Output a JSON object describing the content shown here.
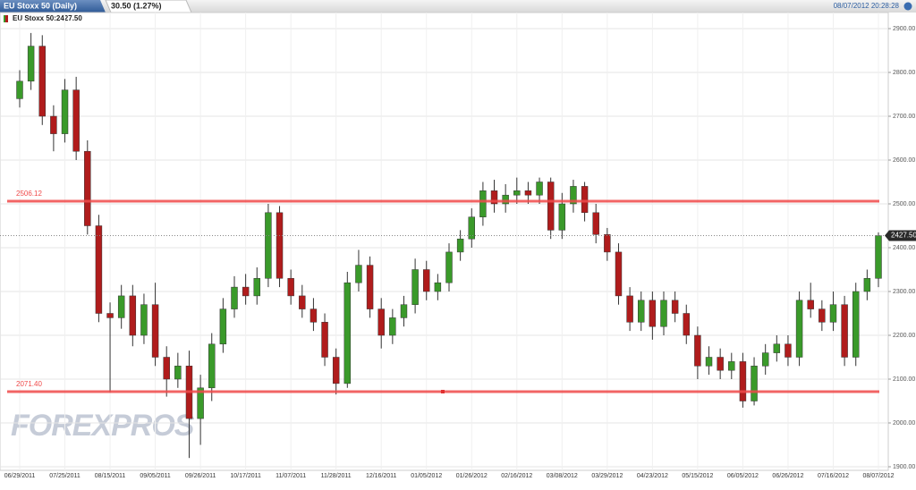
{
  "header": {
    "title": "EU Stoxx 50 (Daily)",
    "change": "30.50 (1.27%)",
    "timestamp": "08/07/2012 20:28:28"
  },
  "chart_data": {
    "type": "candlestick",
    "legend": "EU Stoxx 50:2427.50",
    "watermark": "FOREXPROS",
    "up_color": "#3a9a2a",
    "down_color": "#b01c1c",
    "grid": true,
    "categories": [
      "06/29/2011",
      null,
      null,
      null,
      "07/25/2011",
      null,
      null,
      null,
      "08/15/2011",
      null,
      null,
      null,
      "09/05/2011",
      null,
      null,
      null,
      "09/26/2011",
      null,
      null,
      null,
      "10/17/2011",
      null,
      null,
      null,
      "11/07/2011",
      null,
      null,
      null,
      "11/28/2011",
      null,
      null,
      null,
      "12/16/2011",
      null,
      null,
      null,
      "01/05/2012",
      null,
      null,
      null,
      "01/26/2012",
      null,
      null,
      null,
      "02/16/2012",
      null,
      null,
      null,
      "03/08/2012",
      null,
      null,
      null,
      "03/29/2012",
      null,
      null,
      null,
      "04/23/2012",
      null,
      null,
      null,
      "05/15/2012",
      null,
      null,
      null,
      "06/05/2012",
      null,
      null,
      null,
      "06/26/2012",
      null,
      null,
      null,
      "07/16/2012",
      null,
      null,
      null,
      "08/07/2012"
    ],
    "series": [
      {
        "open": [
          2740,
          2780,
          2860,
          2700,
          2660,
          2760,
          2620,
          2450,
          2250,
          2240,
          2290,
          2200,
          2270,
          2150,
          2100,
          2130,
          2010,
          2080,
          2180,
          2260,
          2310,
          2290,
          2330,
          2480,
          2330,
          2290,
          2260,
          2230,
          2150,
          2090,
          2320,
          2360,
          2260,
          2200,
          2240,
          2270,
          2350,
          2300,
          2320,
          2390,
          2420,
          2470,
          2530,
          2500,
          2520,
          2530,
          2520,
          2550,
          2440,
          2500,
          2540,
          2480,
          2430,
          2390,
          2290,
          2230,
          2280,
          2220,
          2280,
          2250,
          2200,
          2130,
          2150,
          2120,
          2140,
          2050,
          2130,
          2160,
          2180,
          2150,
          2280,
          2260,
          2230,
          2270,
          2150,
          2300,
          2330
        ],
        "high": [
          2805,
          2890,
          2885,
          2725,
          2785,
          2790,
          2645,
          2475,
          2275,
          2315,
          2315,
          2295,
          2320,
          2175,
          2160,
          2165,
          2110,
          2205,
          2285,
          2335,
          2340,
          2355,
          2500,
          2495,
          2350,
          2315,
          2285,
          2250,
          2170,
          2345,
          2395,
          2380,
          2285,
          2260,
          2290,
          2375,
          2370,
          2340,
          2410,
          2440,
          2490,
          2550,
          2555,
          2545,
          2560,
          2550,
          2560,
          2560,
          2525,
          2555,
          2550,
          2500,
          2445,
          2410,
          2310,
          2300,
          2300,
          2300,
          2300,
          2270,
          2220,
          2175,
          2170,
          2160,
          2160,
          2150,
          2180,
          2200,
          2200,
          2300,
          2320,
          2280,
          2300,
          2290,
          2320,
          2350,
          2435
        ],
        "low": [
          2720,
          2760,
          2680,
          2620,
          2640,
          2600,
          2430,
          2230,
          2070,
          2215,
          2175,
          2180,
          2130,
          2060,
          2080,
          1920,
          1950,
          2050,
          2160,
          2240,
          2270,
          2270,
          2310,
          2310,
          2270,
          2240,
          2210,
          2130,
          2065,
          2080,
          2300,
          2240,
          2170,
          2180,
          2220,
          2250,
          2280,
          2280,
          2300,
          2370,
          2400,
          2450,
          2480,
          2480,
          2500,
          2500,
          2500,
          2420,
          2420,
          2480,
          2460,
          2410,
          2370,
          2270,
          2210,
          2210,
          2190,
          2200,
          2230,
          2180,
          2100,
          2110,
          2100,
          2100,
          2035,
          2040,
          2110,
          2140,
          2130,
          2130,
          2240,
          2210,
          2210,
          2130,
          2130,
          2280,
          2310
        ],
        "close": [
          2780,
          2860,
          2700,
          2660,
          2760,
          2620,
          2450,
          2250,
          2240,
          2290,
          2200,
          2270,
          2150,
          2100,
          2130,
          2010,
          2080,
          2180,
          2260,
          2310,
          2290,
          2330,
          2480,
          2330,
          2290,
          2260,
          2230,
          2150,
          2090,
          2320,
          2360,
          2260,
          2200,
          2240,
          2270,
          2350,
          2300,
          2320,
          2390,
          2420,
          2470,
          2530,
          2500,
          2520,
          2530,
          2520,
          2550,
          2440,
          2500,
          2540,
          2480,
          2430,
          2390,
          2290,
          2230,
          2280,
          2220,
          2280,
          2250,
          2200,
          2130,
          2150,
          2120,
          2140,
          2050,
          2130,
          2160,
          2180,
          2150,
          2280,
          2260,
          2230,
          2270,
          2150,
          2300,
          2330,
          2427.5
        ]
      }
    ],
    "ylim": [
      1900,
      2900
    ],
    "yticks": [
      {
        "value": 1900,
        "label": "1900.00"
      },
      {
        "value": 2000,
        "label": "2000.00"
      },
      {
        "value": 2100,
        "label": "2100.00"
      },
      {
        "value": 2200,
        "label": "2200.00"
      },
      {
        "value": 2300,
        "label": "2300.00"
      },
      {
        "value": 2400,
        "label": "2400.00"
      },
      {
        "value": 2500,
        "label": "2500.00"
      },
      {
        "value": 2600,
        "label": "2600.00"
      },
      {
        "value": 2700,
        "label": "2700.00"
      },
      {
        "value": 2800,
        "label": "2800.00"
      },
      {
        "value": 2900,
        "label": "2900.00"
      }
    ],
    "hlines": [
      {
        "value": 2506.12,
        "label": "2506.12",
        "color": "#f04a4a"
      },
      {
        "value": 2071.4,
        "label": "2071.40",
        "color": "#f04a4a"
      }
    ],
    "last": {
      "value": 2427.5,
      "label": "2427.50"
    }
  }
}
